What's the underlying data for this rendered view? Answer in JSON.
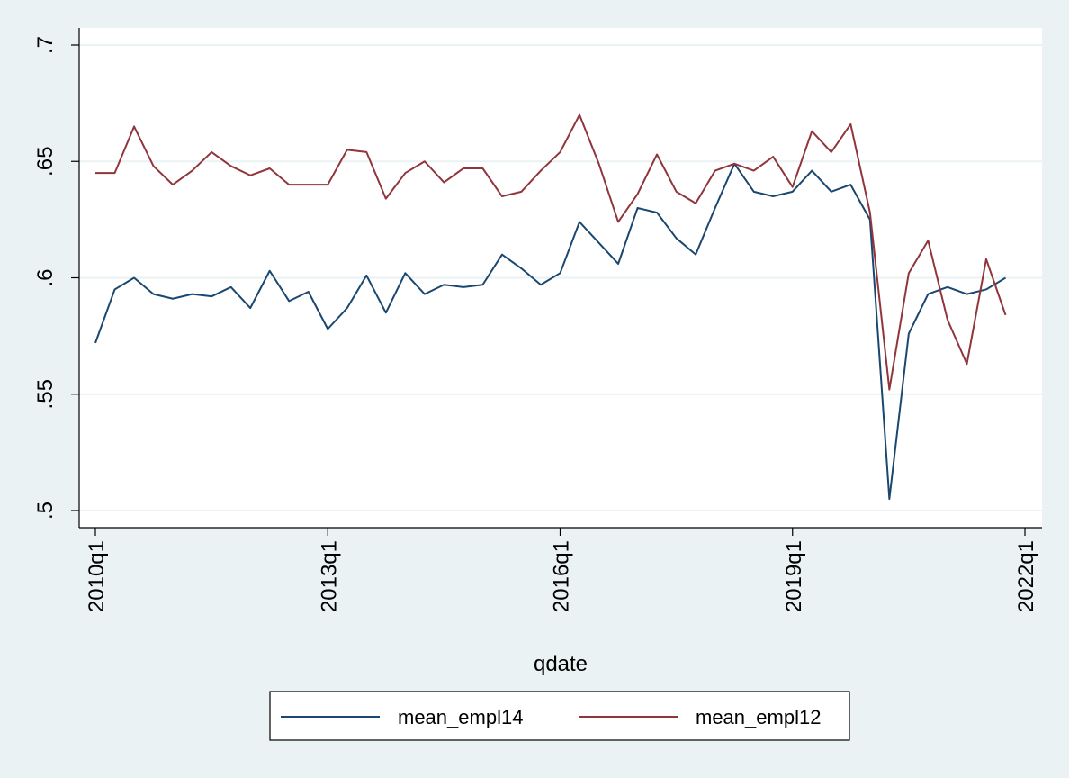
{
  "chart_data": {
    "type": "line",
    "xlabel": "qdate",
    "ylabel": "",
    "x_ticks": [
      "2010q1",
      "2013q1",
      "2016q1",
      "2019q1",
      "2022q1"
    ],
    "y_ticks": [
      ".5",
      ".55",
      ".6",
      ".65",
      ".7"
    ],
    "ylim": [
      0.5,
      0.7
    ],
    "xlim": [
      "2010q1",
      "2022q1"
    ],
    "grid": true,
    "legend_position": "bottom",
    "x": [
      "2010q1",
      "2010q2",
      "2010q3",
      "2010q4",
      "2011q1",
      "2011q2",
      "2011q3",
      "2011q4",
      "2012q1",
      "2012q2",
      "2012q3",
      "2012q4",
      "2013q1",
      "2013q2",
      "2013q3",
      "2013q4",
      "2014q1",
      "2014q2",
      "2014q3",
      "2014q4",
      "2015q1",
      "2015q2",
      "2015q3",
      "2015q4",
      "2016q1",
      "2016q2",
      "2016q3",
      "2016q4",
      "2017q1",
      "2017q2",
      "2017q3",
      "2017q4",
      "2018q1",
      "2018q2",
      "2018q3",
      "2018q4",
      "2019q1",
      "2019q2",
      "2019q3",
      "2019q4",
      "2020q1",
      "2020q2",
      "2020q3",
      "2020q4",
      "2021q1",
      "2021q2",
      "2021q3",
      "2021q4"
    ],
    "series": [
      {
        "name": "mean_empl14",
        "color": "#1a476f",
        "values": [
          0.572,
          0.595,
          0.6,
          0.593,
          0.591,
          0.593,
          0.592,
          0.596,
          0.587,
          0.603,
          0.59,
          0.594,
          0.578,
          0.587,
          0.601,
          0.585,
          0.602,
          0.593,
          0.597,
          0.596,
          0.597,
          0.61,
          0.604,
          0.597,
          0.602,
          0.624,
          0.615,
          0.606,
          0.63,
          0.628,
          0.617,
          0.61,
          0.63,
          0.649,
          0.637,
          0.635,
          0.637,
          0.646,
          0.637,
          0.64,
          0.625,
          0.505,
          0.576,
          0.593,
          0.596,
          0.593,
          0.595,
          0.6
        ]
      },
      {
        "name": "mean_empl12",
        "color": "#90353b",
        "values": [
          0.645,
          0.645,
          0.665,
          0.648,
          0.64,
          0.646,
          0.654,
          0.648,
          0.644,
          0.647,
          0.64,
          0.64,
          0.64,
          0.655,
          0.654,
          0.634,
          0.645,
          0.65,
          0.641,
          0.647,
          0.647,
          0.635,
          0.637,
          0.646,
          0.654,
          0.67,
          0.649,
          0.624,
          0.636,
          0.653,
          0.637,
          0.632,
          0.646,
          0.649,
          0.646,
          0.652,
          0.639,
          0.663,
          0.654,
          0.666,
          0.628,
          0.552,
          0.602,
          0.616,
          0.582,
          0.563,
          0.608,
          0.584
        ]
      }
    ]
  }
}
